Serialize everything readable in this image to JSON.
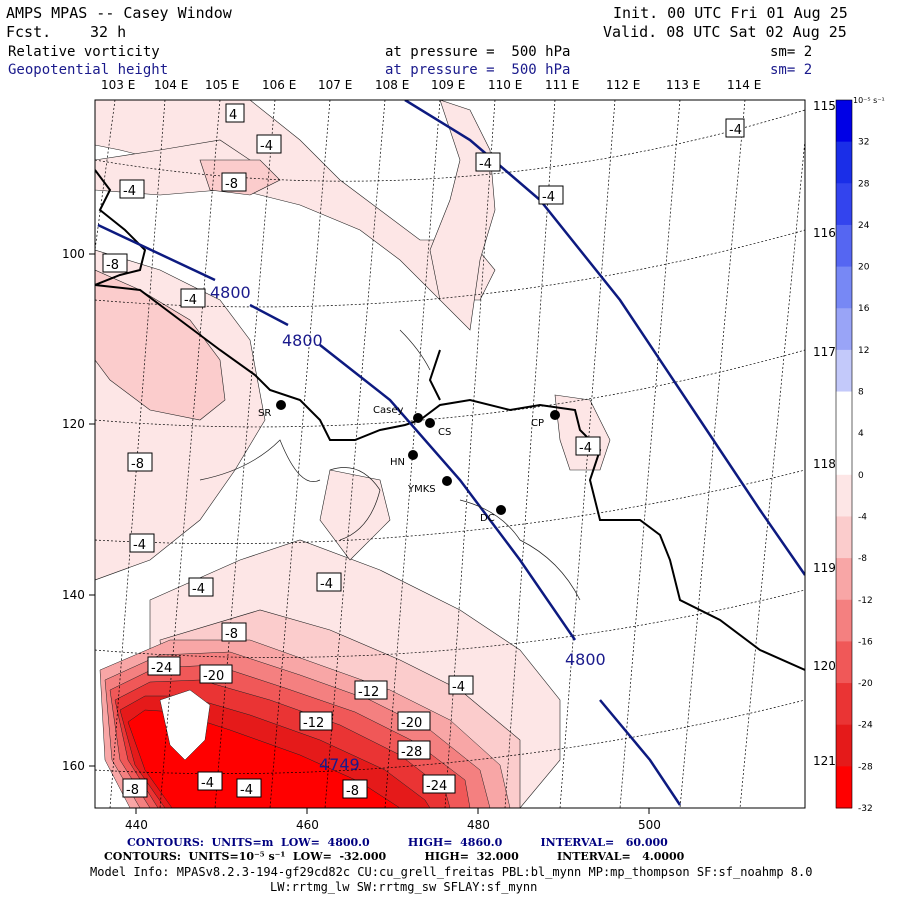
{
  "header": {
    "title": "AMPS MPAS -- Casey Window",
    "fcst_label": "Fcst.",
    "fcst_value": "32 h",
    "init": "Init. 00 UTC Fri 01 Aug 25",
    "valid": "Valid. 08 UTC Sat 02 Aug 25",
    "field1": {
      "name": "Relative vorticity",
      "pressure": "at pressure =  500 hPa",
      "sm": "sm= 2"
    },
    "field2": {
      "name": "Geopotential height",
      "pressure": "at pressure =  500 hPa",
      "sm": "sm= 2"
    }
  },
  "map": {
    "lon_top": [
      "103 E",
      "104 E",
      "105 E",
      "106 E",
      "107 E",
      "108 E",
      "109 E",
      "110 E",
      "111 E",
      "112 E",
      "113 E",
      "114 E"
    ],
    "lon_right": [
      "115 E",
      "116 E",
      "117 E",
      "118 E",
      "119 E",
      "120 E",
      "121 E"
    ],
    "y_ticks": [
      "100",
      "120",
      "140",
      "160"
    ],
    "x_ticks": [
      "440",
      "460",
      "480",
      "500"
    ],
    "stations": [
      {
        "id": "SR"
      },
      {
        "id": "Casey"
      },
      {
        "id": "CS"
      },
      {
        "id": "HN"
      },
      {
        "id": "YMKS"
      },
      {
        "id": "DC"
      },
      {
        "id": "CP"
      }
    ],
    "height_labels": [
      "4800",
      "4800",
      "4800",
      "4749"
    ],
    "vort_labels": [
      "4",
      "-4",
      "-4",
      "-8",
      "-4",
      "-4",
      "-4",
      "-8",
      "-4",
      "-8",
      "-4",
      "-4",
      "-4",
      "-4",
      "-4",
      "-8",
      "-24",
      "-20",
      "-12",
      "-12",
      "-20",
      "-28",
      "-24",
      "-4",
      "-4",
      "-8",
      "-8",
      "-4"
    ]
  },
  "colorbar": {
    "unit": "10⁻⁵ s⁻¹",
    "labels": [
      "32",
      "28",
      "24",
      "20",
      "16",
      "12",
      "8",
      "4",
      "0",
      "-4",
      "-8",
      "-12",
      "-16",
      "-20",
      "-24",
      "-28",
      "-32"
    ],
    "colors": [
      "#0000e6",
      "#1a2ee8",
      "#3344ee",
      "#5566f2",
      "#7788f5",
      "#99a4f7",
      "#c3c9fa",
      "#ffffff",
      "#ffffff",
      "#fde6e6",
      "#fbcccc",
      "#f8a6a6",
      "#f48080",
      "#f05858",
      "#ea3434",
      "#e51a1a",
      "#ff0000"
    ]
  },
  "footer": {
    "line1": "CONTOURS:  UNITS=m  LOW=  4800.0          HIGH=  4860.0          INTERVAL=   60.000",
    "line2": "CONTOURS:  UNITS=10⁻⁵ s⁻¹  LOW=  -32.000          HIGH=  32.000          INTERVAL=   4.0000",
    "line3": "Model Info: MPASv8.2.3-194-gf29cd82c CU:cu_grell_freitas PBL:bl_mynn MP:mp_thompson SF:sf_noahmp 8.0",
    "line4": "LW:rrtmg_lw SW:rrtmg_sw SFLAY:sf_mynn"
  }
}
